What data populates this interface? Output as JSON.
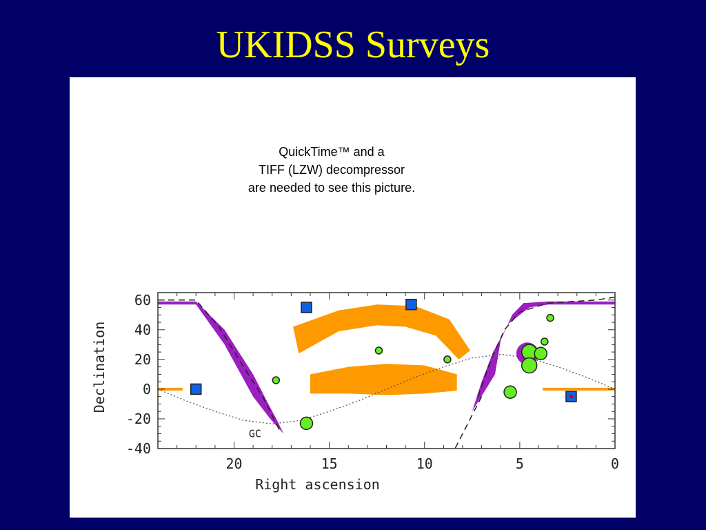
{
  "slide": {
    "title": "UKIDSS Surveys",
    "background": "#000066",
    "title_color": "#ffff00"
  },
  "placeholder": {
    "line1": "QuickTime™ and a",
    "line2": "TIFF (LZW) decompressor",
    "line3": "are needed to see this picture."
  },
  "chart_data": {
    "type": "scatter",
    "xlabel": "Right ascension",
    "ylabel": "Declination",
    "xlim": [
      24,
      0
    ],
    "ylim": [
      -40,
      65
    ],
    "x_ticks": [
      20,
      15,
      10,
      5,
      0
    ],
    "y_ticks": [
      60,
      40,
      20,
      0,
      -20,
      -40
    ],
    "annotation": "GC",
    "colors": {
      "galactic_plane": "#9b1fc0",
      "survey_region": "#ff9900",
      "square_fill": "#1060e0",
      "circle_fill": "#66ee22",
      "star_marker": "#cc0000"
    },
    "galactic_plane_bands": [
      {
        "upper": [
          [
            24,
            59
          ],
          [
            22,
            59
          ],
          [
            20.5,
            40
          ],
          [
            19,
            10
          ],
          [
            18.2,
            -10
          ],
          [
            17.7,
            -22
          ]
        ],
        "lower": [
          [
            24,
            57
          ],
          [
            22,
            57
          ],
          [
            20.5,
            30
          ],
          [
            19,
            -5
          ],
          [
            18.1,
            -20
          ],
          [
            17.4,
            -30
          ]
        ]
      },
      {
        "upper": [
          [
            6.3,
            10
          ],
          [
            6,
            33
          ],
          [
            5.4,
            50
          ],
          [
            4.8,
            58
          ],
          [
            3.5,
            59
          ],
          [
            0,
            59
          ]
        ],
        "lower": [
          [
            7.5,
            -15
          ],
          [
            7,
            5
          ],
          [
            6.4,
            25
          ],
          [
            5.6,
            44
          ],
          [
            4.5,
            55
          ],
          [
            3.5,
            57
          ],
          [
            0,
            57
          ]
        ]
      }
    ],
    "galactic_plane_centerline": [
      [
        [
          24,
          60
        ],
        [
          22,
          60
        ],
        [
          20.8,
          42
        ],
        [
          19.5,
          15
        ],
        [
          18.5,
          -5
        ],
        [
          17.6,
          -28
        ]
      ],
      [
        [
          7.2,
          -5
        ],
        [
          6.5,
          20
        ],
        [
          5.8,
          40
        ],
        [
          5,
          52
        ],
        [
          3.5,
          58
        ],
        [
          1,
          60
        ],
        [
          0,
          62
        ]
      ]
    ],
    "lower_dashed_curve": [
      [
        7.0,
        -5
      ],
      [
        7.6,
        -20
      ],
      [
        8.4,
        -40
      ]
    ],
    "ecliptic": [
      [
        24,
        0
      ],
      [
        22.5,
        -8
      ],
      [
        21,
        -15
      ],
      [
        19.5,
        -21
      ],
      [
        18,
        -23.4
      ],
      [
        16.5,
        -21
      ],
      [
        15,
        -15
      ],
      [
        13.5,
        -8
      ],
      [
        12,
        0
      ],
      [
        10.5,
        8
      ],
      [
        9,
        15
      ],
      [
        7.5,
        21
      ],
      [
        6,
        23.4
      ],
      [
        4.5,
        21
      ],
      [
        3,
        15
      ],
      [
        1.5,
        8
      ],
      [
        0,
        0
      ]
    ],
    "survey_regions": [
      {
        "shape": "arc_band",
        "outer": [
          [
            16.9,
            42
          ],
          [
            14.5,
            53
          ],
          [
            12.5,
            57
          ],
          [
            10.5,
            56
          ],
          [
            8.7,
            47
          ],
          [
            7.6,
            26
          ]
        ],
        "inner": [
          [
            8.2,
            20
          ],
          [
            9.4,
            36
          ],
          [
            11,
            42
          ],
          [
            12.5,
            43
          ],
          [
            14.5,
            39
          ],
          [
            16.6,
            24
          ]
        ]
      },
      {
        "shape": "lens",
        "top": [
          [
            16.0,
            10
          ],
          [
            14,
            15
          ],
          [
            12,
            17
          ],
          [
            10,
            16
          ],
          [
            8.3,
            10
          ]
        ],
        "bottom": [
          [
            8.3,
            -1
          ],
          [
            10,
            -3
          ],
          [
            12,
            -4
          ],
          [
            14,
            -3
          ],
          [
            16,
            -3
          ]
        ]
      },
      {
        "shape": "strip",
        "ra_start": 24,
        "ra_end": 22.7,
        "dec": 0
      },
      {
        "shape": "strip",
        "ra_start": 3.8,
        "ra_end": 0,
        "dec": 0
      }
    ],
    "squares": [
      {
        "ra": 22.0,
        "dec": 0
      },
      {
        "ra": 16.2,
        "dec": 55
      },
      {
        "ra": 10.7,
        "dec": 57
      },
      {
        "ra": 2.3,
        "dec": -5,
        "star": true
      }
    ],
    "circles": [
      {
        "ra": 17.8,
        "dec": 6,
        "size": "small"
      },
      {
        "ra": 16.2,
        "dec": -23,
        "size": "medium"
      },
      {
        "ra": 12.4,
        "dec": 26,
        "size": "small"
      },
      {
        "ra": 8.8,
        "dec": 20,
        "size": "small"
      },
      {
        "ra": 5.5,
        "dec": -2,
        "size": "medium"
      },
      {
        "ra": 4.6,
        "dec": 24,
        "size": "cluster"
      },
      {
        "ra": 4.5,
        "dec": 25,
        "size": "large"
      },
      {
        "ra": 4.5,
        "dec": 16,
        "size": "large"
      },
      {
        "ra": 3.9,
        "dec": 24,
        "size": "medium"
      },
      {
        "ra": 3.7,
        "dec": 32,
        "size": "small"
      },
      {
        "ra": 3.4,
        "dec": 48,
        "size": "small"
      }
    ]
  }
}
